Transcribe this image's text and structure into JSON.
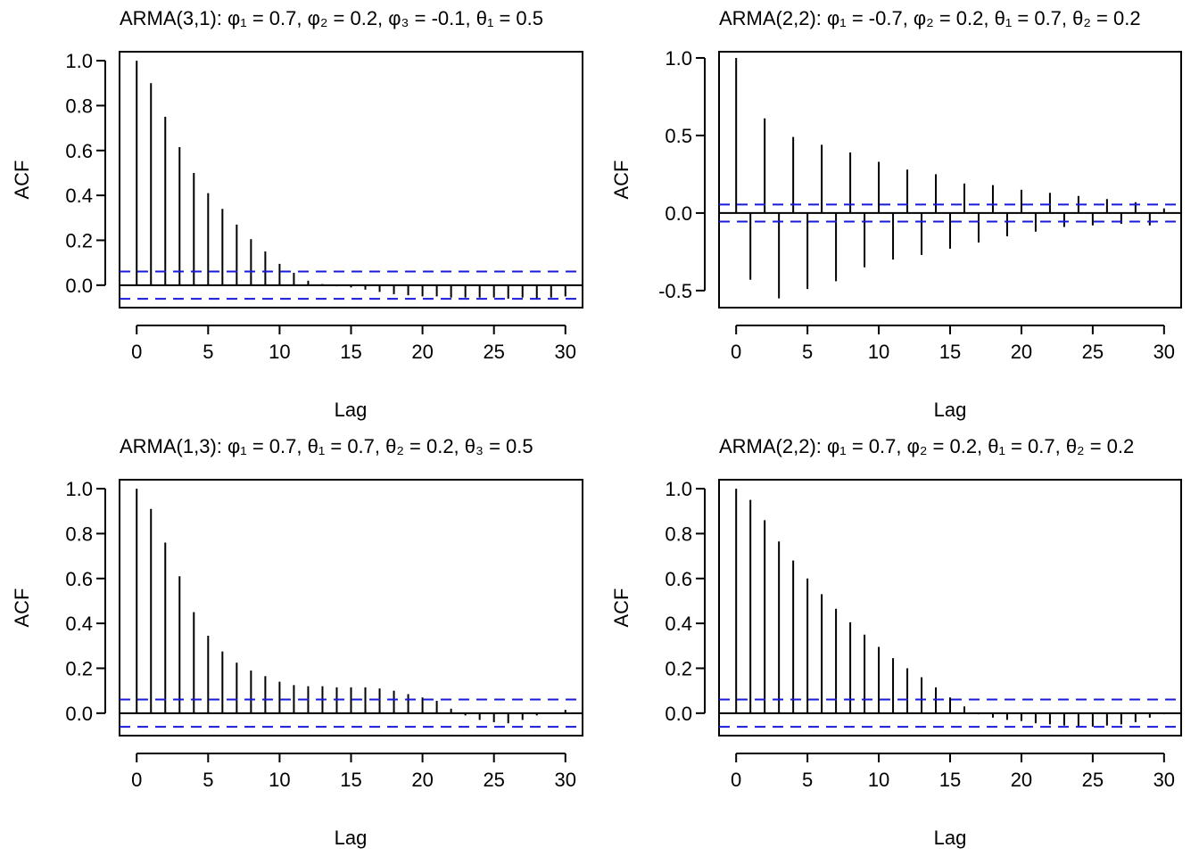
{
  "chart_data": [
    {
      "type": "bar",
      "title": "ARMA(3,1): φ₁ = 0.7, φ₂ = 0.2, φ₃ = -0.1, θ₁ = 0.5",
      "xlabel": "Lag",
      "ylabel": "ACF",
      "xlim": [
        -1.2,
        31.2
      ],
      "ylim": [
        -0.1,
        1.04
      ],
      "xticks": [
        "0",
        "5",
        "10",
        "15",
        "20",
        "25",
        "30"
      ],
      "yticks": [
        "0.0",
        "0.2",
        "0.4",
        "0.6",
        "0.8",
        "1.0"
      ],
      "ci": 0.061,
      "x": [
        0,
        1,
        2,
        3,
        4,
        5,
        6,
        7,
        8,
        9,
        10,
        11,
        12,
        13,
        14,
        15,
        16,
        17,
        18,
        19,
        20,
        21,
        22,
        23,
        24,
        25,
        26,
        27,
        28,
        29,
        30
      ],
      "values": [
        1.0,
        0.9,
        0.75,
        0.615,
        0.5,
        0.41,
        0.34,
        0.27,
        0.205,
        0.15,
        0.095,
        0.055,
        0.02,
        0.005,
        -0.005,
        -0.01,
        -0.02,
        -0.03,
        -0.04,
        -0.045,
        -0.05,
        -0.05,
        -0.055,
        -0.055,
        -0.055,
        -0.055,
        -0.06,
        -0.055,
        -0.06,
        -0.055,
        -0.05
      ]
    },
    {
      "type": "bar",
      "title": "ARMA(2,2): φ₁ = -0.7, φ₂ = 0.2, θ₁ = 0.7, θ₂ = 0.2",
      "xlabel": "Lag",
      "ylabel": "ACF",
      "xlim": [
        -1.2,
        31.2
      ],
      "ylim": [
        -0.61,
        1.04
      ],
      "xticks": [
        "0",
        "5",
        "10",
        "15",
        "20",
        "25",
        "30"
      ],
      "yticks": [
        "-0.5",
        "0.0",
        "0.5",
        "1.0"
      ],
      "ci": 0.055,
      "x": [
        0,
        1,
        2,
        3,
        4,
        5,
        6,
        7,
        8,
        9,
        10,
        11,
        12,
        13,
        14,
        15,
        16,
        17,
        18,
        19,
        20,
        21,
        22,
        23,
        24,
        25,
        26,
        27,
        28,
        29,
        30
      ],
      "values": [
        1.0,
        -0.43,
        0.61,
        -0.55,
        0.49,
        -0.49,
        0.44,
        -0.44,
        0.39,
        -0.35,
        0.33,
        -0.3,
        0.28,
        -0.27,
        0.25,
        -0.23,
        0.19,
        -0.19,
        0.18,
        -0.15,
        0.15,
        -0.12,
        0.13,
        -0.09,
        0.11,
        -0.08,
        0.09,
        -0.07,
        0.07,
        -0.08,
        0.03
      ]
    },
    {
      "type": "bar",
      "title": "ARMA(1,3): φ₁ = 0.7, θ₁ = 0.7, θ₂ = 0.2, θ₃ = 0.5",
      "xlabel": "Lag",
      "ylabel": "ACF",
      "xlim": [
        -1.2,
        31.2
      ],
      "ylim": [
        -0.1,
        1.04
      ],
      "xticks": [
        "0",
        "5",
        "10",
        "15",
        "20",
        "25",
        "30"
      ],
      "yticks": [
        "0.0",
        "0.2",
        "0.4",
        "0.6",
        "0.8",
        "1.0"
      ],
      "ci": 0.061,
      "x": [
        0,
        1,
        2,
        3,
        4,
        5,
        6,
        7,
        8,
        9,
        10,
        11,
        12,
        13,
        14,
        15,
        16,
        17,
        18,
        19,
        20,
        21,
        22,
        23,
        24,
        25,
        26,
        27,
        28,
        29,
        30
      ],
      "values": [
        1.0,
        0.91,
        0.76,
        0.61,
        0.45,
        0.345,
        0.275,
        0.225,
        0.19,
        0.165,
        0.14,
        0.125,
        0.12,
        0.12,
        0.115,
        0.115,
        0.115,
        0.11,
        0.1,
        0.085,
        0.07,
        0.055,
        0.02,
        -0.01,
        -0.03,
        -0.04,
        -0.045,
        -0.03,
        -0.01,
        0.0,
        0.015
      ]
    },
    {
      "type": "bar",
      "title": "ARMA(2,2): φ₁ = 0.7, φ₂ = 0.2, θ₁ = 0.7, θ₂ = 0.2",
      "xlabel": "Lag",
      "ylabel": "ACF",
      "xlim": [
        -1.2,
        31.2
      ],
      "ylim": [
        -0.1,
        1.04
      ],
      "xticks": [
        "0",
        "5",
        "10",
        "15",
        "20",
        "25",
        "30"
      ],
      "yticks": [
        "0.0",
        "0.2",
        "0.4",
        "0.6",
        "0.8",
        "1.0"
      ],
      "ci": 0.061,
      "x": [
        0,
        1,
        2,
        3,
        4,
        5,
        6,
        7,
        8,
        9,
        10,
        11,
        12,
        13,
        14,
        15,
        16,
        17,
        18,
        19,
        20,
        21,
        22,
        23,
        24,
        25,
        26,
        27,
        28,
        29,
        30
      ],
      "values": [
        1.0,
        0.95,
        0.86,
        0.765,
        0.68,
        0.6,
        0.53,
        0.465,
        0.405,
        0.35,
        0.295,
        0.245,
        0.2,
        0.16,
        0.115,
        0.07,
        0.03,
        -0.005,
        -0.02,
        -0.03,
        -0.035,
        -0.045,
        -0.05,
        -0.055,
        -0.06,
        -0.06,
        -0.055,
        -0.05,
        -0.04,
        -0.02,
        -0.005
      ]
    }
  ]
}
